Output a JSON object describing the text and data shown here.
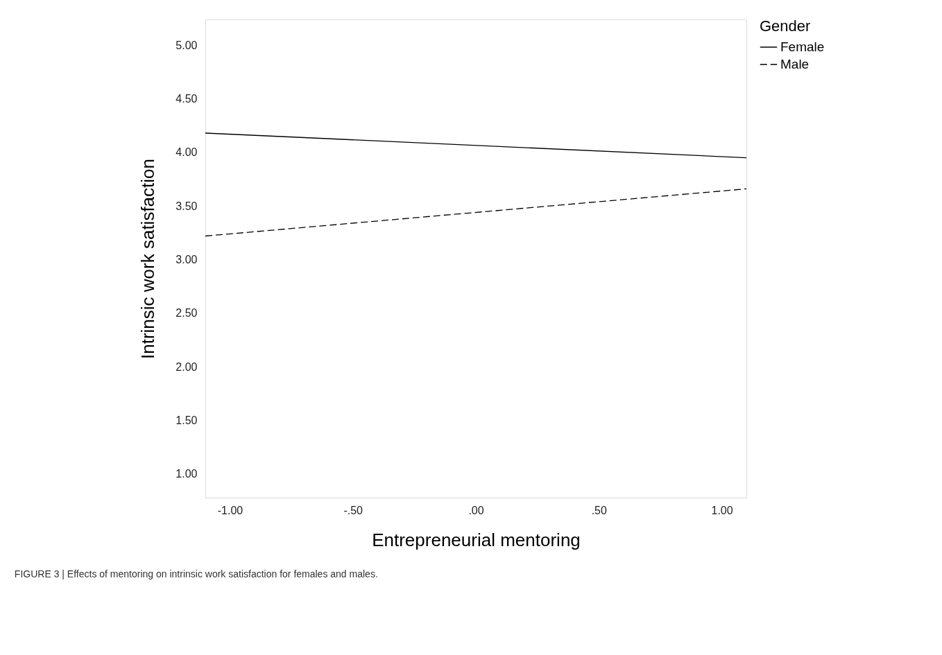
{
  "chart_data": {
    "type": "line",
    "xlabel": "Entrepreneurial mentoring",
    "ylabel": "Intrinsic work satisfaction",
    "legend_title": "Gender",
    "x": [
      -1.1,
      1.1
    ],
    "series": [
      {
        "name": "Female",
        "color": "#000000",
        "line_style": "solid",
        "values": [
          4.18,
          3.95
        ]
      },
      {
        "name": "Male",
        "color": "#000000",
        "line_style": "dashed",
        "values": [
          3.22,
          3.66
        ]
      }
    ],
    "xlim": [
      -1.1,
      1.1
    ],
    "ylim": [
      0.78,
      5.24
    ],
    "xticks": [
      {
        "value": -1,
        "label": "-1.00"
      },
      {
        "value": -0.5,
        "label": "-.50"
      },
      {
        "value": 0,
        "label": ".00"
      },
      {
        "value": 0.5,
        "label": ".50"
      },
      {
        "value": 1,
        "label": "1.00"
      }
    ],
    "yticks": [
      {
        "value": 1,
        "label": "1.00"
      },
      {
        "value": 1.5,
        "label": "1.50"
      },
      {
        "value": 2,
        "label": "2.00"
      },
      {
        "value": 2.5,
        "label": "2.50"
      },
      {
        "value": 3,
        "label": "3.00"
      },
      {
        "value": 3.5,
        "label": "3.50"
      },
      {
        "value": 4,
        "label": "4.00"
      },
      {
        "value": 4.5,
        "label": "4.50"
      },
      {
        "value": 5,
        "label": "5.00"
      }
    ],
    "grid": false,
    "legend": "right",
    "marker": "none",
    "annotations": [
      "FIGURE 3 | Effects of mentoring on intrinsic work satisfaction for females and males."
    ]
  }
}
